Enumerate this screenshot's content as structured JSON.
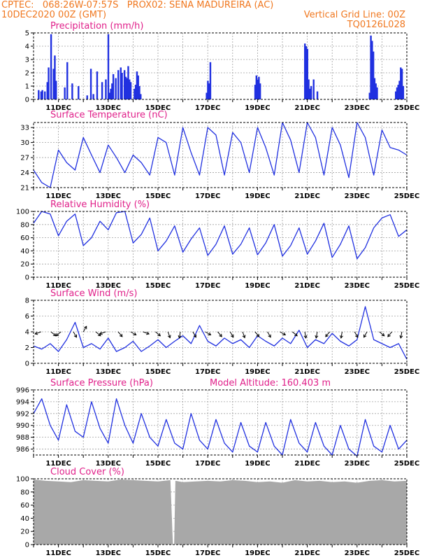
{
  "header": {
    "line1_left": "CPTEC:   068:26W-07:57S   PROX02: SENA MADUREIRA (AC)",
    "line2_left": "10DEC2020 00Z (GMT)",
    "line2_right": "Vertical Grid Line: 00Z",
    "line3_right": "TQ0126L028"
  },
  "colors": {
    "header": "#f07820",
    "title": "#e0208a",
    "series": "#2030e0",
    "cloud": "#a8a8a8",
    "grid": "#a0a0a0"
  },
  "x_ticks": [
    "11DEC",
    "13DEC",
    "15DEC",
    "17DEC",
    "19DEC",
    "21DEC",
    "23DEC",
    "25DEC"
  ],
  "chart_data": [
    {
      "type": "bar",
      "title": "Precipitation (mm/h)",
      "ylim": [
        0,
        5
      ],
      "yticks": [
        "0",
        "1",
        "2",
        "3",
        "4",
        "5"
      ],
      "x_days": [
        0.2,
        0.3,
        0.35,
        0.45,
        0.55,
        0.6,
        0.7,
        0.8,
        0.85,
        0.9,
        1.25,
        1.35,
        1.55,
        1.8,
        2.15,
        2.3,
        2.4,
        2.55,
        2.75,
        2.9,
        3.0,
        3.05,
        3.1,
        3.15,
        3.2,
        3.3,
        3.4,
        3.5,
        3.55,
        3.65,
        3.7,
        3.75,
        3.8,
        3.85,
        3.9,
        4.05,
        4.1,
        4.15,
        4.2,
        4.25,
        4.3,
        6.95,
        7.0,
        7.05,
        7.1,
        8.9,
        8.95,
        9.0,
        9.05,
        9.1,
        10.9,
        10.95,
        11.0,
        11.05,
        11.1,
        11.15,
        11.25,
        11.4,
        13.5,
        13.55,
        13.6,
        13.65,
        13.7,
        13.75,
        13.8,
        14.55,
        14.6,
        14.65,
        14.7,
        14.75,
        14.8,
        14.85
      ],
      "values": [
        0.7,
        0.6,
        0.7,
        0.6,
        1.3,
        2.4,
        4.9,
        2.3,
        3.3,
        1.4,
        0.9,
        2.8,
        1.2,
        1.0,
        0.3,
        2.3,
        0.4,
        2.1,
        1.3,
        1.5,
        4.9,
        0.5,
        0.8,
        1.2,
        1.9,
        1.6,
        2.2,
        2.4,
        2.0,
        2.2,
        1.7,
        1.6,
        2.5,
        1.5,
        1.3,
        0.8,
        1.1,
        2.1,
        1.8,
        1.0,
        0.4,
        0.5,
        1.4,
        1.2,
        2.8,
        1.1,
        1.8,
        1.5,
        1.7,
        1.2,
        4.2,
        4.0,
        3.8,
        1.5,
        0.8,
        1.0,
        1.5,
        0.6,
        0.5,
        4.8,
        4.4,
        3.6,
        1.6,
        1.2,
        0.9,
        0.6,
        0.9,
        1.1,
        1.4,
        2.4,
        2.3,
        1.0
      ]
    },
    {
      "type": "line",
      "title": "Surface Temperature (nC)",
      "ylim": [
        21,
        34
      ],
      "yticks": [
        "21",
        "24",
        "27",
        "30",
        "33"
      ],
      "x_days": [
        0,
        0.33,
        0.67,
        1,
        1.33,
        1.67,
        2,
        2.33,
        2.67,
        3,
        3.33,
        3.67,
        4,
        4.33,
        4.67,
        5,
        5.33,
        5.67,
        6,
        6.33,
        6.67,
        7,
        7.33,
        7.67,
        8,
        8.33,
        8.67,
        9,
        9.33,
        9.67,
        10,
        10.33,
        10.67,
        11,
        11.33,
        11.67,
        12,
        12.33,
        12.67,
        13,
        13.33,
        13.67,
        14,
        14.33,
        14.67,
        15
      ],
      "values": [
        24.5,
        22.0,
        21.0,
        28.5,
        26.0,
        24.5,
        31.0,
        27.5,
        24.0,
        29.5,
        27.0,
        24.0,
        27.5,
        26.0,
        23.5,
        31.0,
        30.0,
        23.5,
        33.0,
        28.0,
        23.5,
        33.0,
        31.5,
        23.5,
        32.0,
        30.0,
        24.0,
        33.0,
        29.0,
        23.5,
        34.0,
        30.5,
        24.0,
        34.0,
        31.0,
        23.5,
        33.0,
        29.5,
        23.0,
        34.0,
        31.0,
        23.5,
        32.5,
        29.0,
        28.5,
        27.5
      ]
    },
    {
      "type": "line",
      "title": "Relative Humidity (%)",
      "ylim": [
        0,
        100
      ],
      "yticks": [
        "0",
        "20",
        "40",
        "60",
        "80",
        "100"
      ],
      "x_days": [
        0,
        0.33,
        0.67,
        1,
        1.33,
        1.67,
        2,
        2.33,
        2.67,
        3,
        3.33,
        3.67,
        4,
        4.33,
        4.67,
        5,
        5.33,
        5.67,
        6,
        6.33,
        6.67,
        7,
        7.33,
        7.67,
        8,
        8.33,
        8.67,
        9,
        9.33,
        9.67,
        10,
        10.33,
        10.67,
        11,
        11.33,
        11.67,
        12,
        12.33,
        12.67,
        13,
        13.33,
        13.67,
        14,
        14.33,
        14.67,
        15
      ],
      "values": [
        82,
        100,
        96,
        63,
        85,
        96,
        48,
        60,
        85,
        72,
        98,
        100,
        52,
        65,
        90,
        40,
        55,
        78,
        38,
        58,
        75,
        33,
        50,
        78,
        35,
        50,
        75,
        34,
        52,
        80,
        32,
        48,
        75,
        35,
        55,
        82,
        30,
        50,
        78,
        28,
        45,
        75,
        90,
        95,
        62,
        72
      ]
    },
    {
      "type": "line",
      "title": "Surface Wind (m/s)",
      "ylim": [
        0,
        8
      ],
      "yticks": [
        "0",
        "2",
        "4",
        "6",
        "8"
      ],
      "x_days": [
        0,
        0.33,
        0.67,
        1,
        1.33,
        1.67,
        2,
        2.33,
        2.67,
        3,
        3.33,
        3.67,
        4,
        4.33,
        4.67,
        5,
        5.33,
        5.67,
        6,
        6.33,
        6.67,
        7,
        7.33,
        7.67,
        8,
        8.33,
        8.67,
        9,
        9.33,
        9.67,
        10,
        10.33,
        10.67,
        11,
        11.33,
        11.67,
        12,
        12.33,
        12.67,
        13,
        13.33,
        13.67,
        14,
        14.33,
        14.67,
        15
      ],
      "values": [
        2.2,
        1.8,
        2.5,
        1.5,
        3.0,
        5.2,
        2.0,
        2.5,
        1.8,
        3.2,
        1.5,
        2.0,
        2.8,
        1.5,
        2.2,
        3.0,
        2.0,
        2.8,
        3.5,
        2.5,
        4.8,
        2.8,
        2.2,
        3.2,
        2.5,
        3.0,
        2.0,
        3.5,
        2.8,
        2.2,
        3.2,
        2.5,
        4.2,
        2.0,
        3.0,
        2.5,
        3.8,
        2.8,
        2.2,
        3.0,
        7.2,
        3.0,
        2.5,
        2.0,
        2.5,
        0.5
      ],
      "arrow_days": [
        0.3,
        0.7,
        1.1,
        1.6,
        2.0,
        2.5,
        2.9,
        3.4,
        3.9,
        4.4,
        4.9,
        5.4,
        5.9,
        6.4,
        6.9,
        7.4,
        7.9,
        8.4,
        8.9,
        9.4,
        9.9,
        10.4,
        10.9,
        11.4,
        11.9,
        12.4,
        12.9,
        13.4,
        13.9,
        14.4,
        14.8
      ],
      "arrow_dirs_deg": [
        200,
        320,
        220,
        300,
        60,
        320,
        200,
        310,
        330,
        340,
        320,
        290,
        260,
        300,
        330,
        310,
        300,
        290,
        310,
        300,
        330,
        320,
        280,
        260,
        230,
        260,
        300,
        240,
        320,
        230,
        260
      ]
    },
    {
      "type": "line",
      "title": "Surface Pressure (hPa)",
      "subtitle": "Model Altitude: 160.403 m",
      "ylim": [
        985,
        996
      ],
      "yticks": [
        "986",
        "988",
        "990",
        "992",
        "994",
        "996"
      ],
      "x_days": [
        0,
        0.33,
        0.67,
        1,
        1.33,
        1.67,
        2,
        2.33,
        2.67,
        3,
        3.33,
        3.67,
        4,
        4.33,
        4.67,
        5,
        5.33,
        5.67,
        6,
        6.33,
        6.67,
        7,
        7.33,
        7.67,
        8,
        8.33,
        8.67,
        9,
        9.33,
        9.67,
        10,
        10.33,
        10.67,
        11,
        11.33,
        11.67,
        12,
        12.33,
        12.67,
        13,
        13.33,
        13.67,
        14,
        14.33,
        14.67,
        15
      ],
      "values": [
        992.0,
        994.5,
        990.0,
        987.5,
        993.5,
        989.0,
        988.0,
        994.0,
        989.5,
        987.0,
        994.5,
        990.0,
        987.0,
        992.0,
        988.0,
        986.5,
        991.0,
        987.0,
        986.0,
        992.0,
        987.5,
        986.0,
        991.0,
        987.0,
        985.5,
        990.5,
        986.5,
        985.5,
        990.5,
        986.5,
        985.0,
        991.0,
        987.0,
        985.5,
        990.5,
        986.5,
        985.0,
        990.0,
        986.0,
        984.8,
        991.0,
        986.5,
        985.5,
        990.0,
        986.0,
        987.5
      ]
    },
    {
      "type": "area",
      "title": "Cloud Cover (%)",
      "ylim": [
        0,
        100
      ],
      "yticks": [
        "0",
        "20",
        "40",
        "60",
        "80",
        "100"
      ],
      "x_days": [
        0,
        0.5,
        1,
        1.5,
        2,
        2.5,
        3,
        3.5,
        4,
        4.5,
        5,
        5.5,
        5.6,
        5.65,
        5.7,
        6,
        6.5,
        7,
        7.5,
        8,
        8.5,
        9,
        9.5,
        10,
        10.5,
        11,
        11.5,
        12,
        12.5,
        13,
        13.5,
        14,
        14.5,
        15
      ],
      "values": [
        99,
        97,
        96,
        95,
        98,
        97,
        96,
        99,
        98,
        97,
        96,
        98,
        0,
        0,
        97,
        95,
        96,
        97,
        96,
        98,
        97,
        95,
        96,
        94,
        98,
        96,
        97,
        95,
        96,
        94,
        97,
        98,
        96,
        97
      ]
    }
  ]
}
